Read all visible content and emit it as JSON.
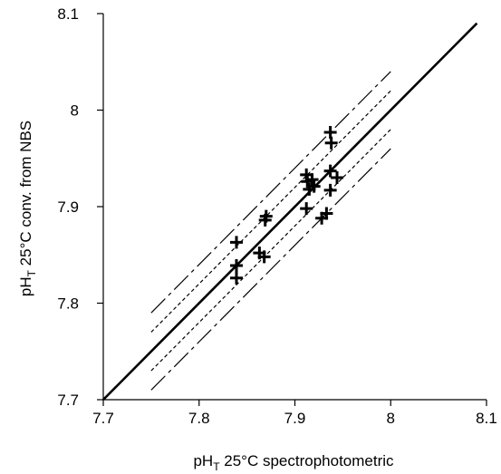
{
  "chart_data": {
    "type": "scatter",
    "title": "",
    "xlabel": {
      "base": "pH",
      "sub": "T",
      "rest": " 25°C spectrophotometric"
    },
    "ylabel": {
      "base": "pH",
      "sub": "T",
      "rest": " 25°C conv. from NBS"
    },
    "xlim": [
      7.7,
      8.1
    ],
    "ylim": [
      7.7,
      8.1
    ],
    "xticks": [
      "7.7",
      "7.8",
      "7.9",
      "8",
      "8.1"
    ],
    "yticks": [
      "7.7",
      "7.8",
      "7.9",
      "8",
      "8.1"
    ],
    "grid": false,
    "legend": "none",
    "points": [
      {
        "x": 7.839,
        "y": 7.863
      },
      {
        "x": 7.839,
        "y": 7.839
      },
      {
        "x": 7.839,
        "y": 7.826
      },
      {
        "x": 7.863,
        "y": 7.852
      },
      {
        "x": 7.868,
        "y": 7.848
      },
      {
        "x": 7.869,
        "y": 7.886
      },
      {
        "x": 7.87,
        "y": 7.89
      },
      {
        "x": 7.912,
        "y": 7.898
      },
      {
        "x": 7.912,
        "y": 7.933
      },
      {
        "x": 7.913,
        "y": 7.926
      },
      {
        "x": 7.915,
        "y": 7.918
      },
      {
        "x": 7.918,
        "y": 7.928
      },
      {
        "x": 7.92,
        "y": 7.921
      },
      {
        "x": 7.928,
        "y": 7.888
      },
      {
        "x": 7.933,
        "y": 7.893
      },
      {
        "x": 7.937,
        "y": 7.977
      },
      {
        "x": 7.938,
        "y": 7.966
      },
      {
        "x": 7.937,
        "y": 7.937
      },
      {
        "x": 7.937,
        "y": 7.917
      },
      {
        "x": 7.944,
        "y": 7.93
      }
    ],
    "lines": [
      {
        "style": "solid",
        "x": [
          7.7,
          8.09
        ],
        "y": [
          7.7,
          8.09
        ]
      },
      {
        "style": "dotted",
        "x": [
          7.75,
          8.0
        ],
        "y": [
          7.77,
          8.02
        ]
      },
      {
        "style": "dotted",
        "x": [
          7.75,
          8.0
        ],
        "y": [
          7.73,
          7.98
        ]
      },
      {
        "style": "dashed",
        "x": [
          7.75,
          8.0
        ],
        "y": [
          7.79,
          8.04
        ]
      },
      {
        "style": "dashed",
        "x": [
          7.75,
          8.0
        ],
        "y": [
          7.71,
          7.96
        ]
      }
    ]
  }
}
